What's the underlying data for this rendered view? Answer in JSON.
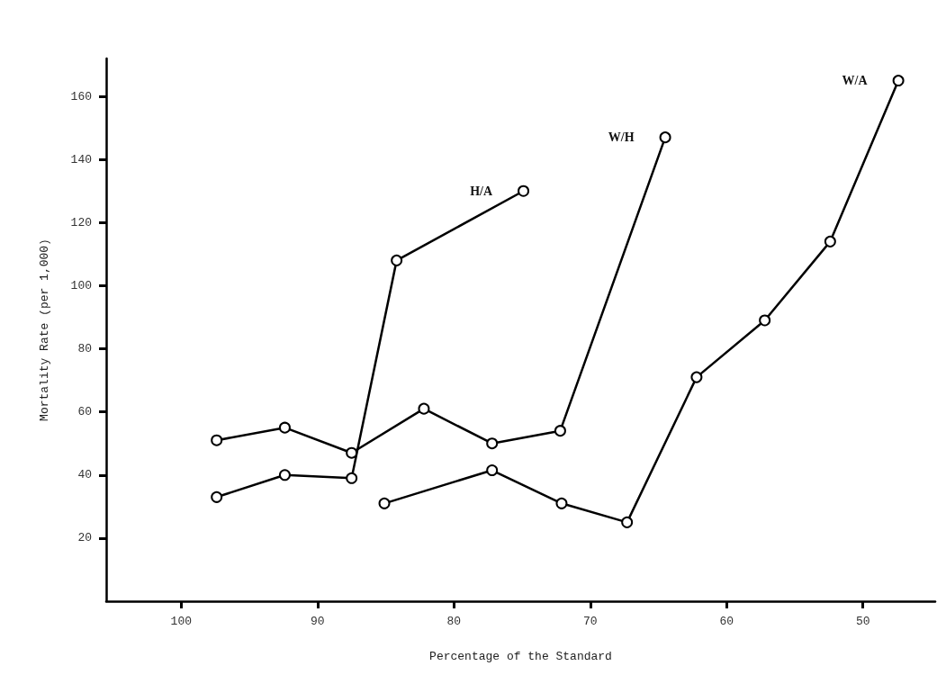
{
  "chart_data": {
    "type": "line",
    "xlabel": "Percentage of the Standard",
    "ylabel": "Mortality Rate (per 1,000)",
    "xlim": [
      105.5,
      44.7
    ],
    "xticks": [
      100,
      90,
      80,
      70,
      60,
      50
    ],
    "ylim": [
      0,
      172
    ],
    "yticks": [
      20,
      40,
      60,
      80,
      100,
      120,
      140,
      160
    ],
    "grid": false,
    "legend": false,
    "marker": "circle",
    "line_style": "solid",
    "series": [
      {
        "name": "H/A",
        "color": "#000000",
        "x": [
          97.4,
          92.4,
          87.5,
          84.2,
          74.9
        ],
        "values": [
          33,
          40,
          39,
          108,
          130
        ]
      },
      {
        "name": "W/H",
        "color": "#000000",
        "x": [
          97.4,
          92.4,
          87.5,
          82.2,
          77.2,
          72.2,
          64.5
        ],
        "values": [
          51,
          55,
          47,
          61,
          50,
          54,
          147
        ]
      },
      {
        "name": "W/A",
        "color": "#000000",
        "x": [
          85.1,
          77.2,
          72.1,
          67.3,
          62.2,
          57.2,
          52.4,
          47.4
        ],
        "values": [
          31,
          41.5,
          31,
          25,
          71,
          89,
          114,
          165
        ]
      }
    ]
  }
}
